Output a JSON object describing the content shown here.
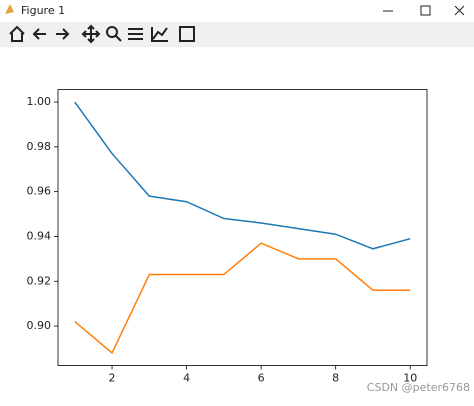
{
  "window": {
    "title": "Figure 1"
  },
  "watermark": "CSDN @peter6768",
  "chart_data": {
    "type": "line",
    "x": [
      1,
      2,
      3,
      4,
      5,
      6,
      7,
      8,
      9,
      10
    ],
    "series": [
      {
        "color": "#1f77b4",
        "values": [
          1.0,
          0.977,
          0.958,
          0.9555,
          0.948,
          0.946,
          0.9435,
          0.941,
          0.9345,
          0.939
        ]
      },
      {
        "color": "#ff7f0e",
        "values": [
          0.902,
          0.888,
          0.923,
          0.923,
          0.923,
          0.937,
          0.93,
          0.93,
          0.916,
          0.916
        ]
      }
    ],
    "xlim": [
      0.55,
      10.45
    ],
    "xticks": [
      2,
      4,
      6,
      8,
      10
    ],
    "ylim": [
      0.8824,
      1.0056
    ],
    "yticks": [
      {
        "value": 0.9,
        "label": "0.90"
      },
      0.92,
      0.94,
      0.96,
      0.98,
      {
        "value": 1.0,
        "label": "1.00"
      }
    ]
  }
}
